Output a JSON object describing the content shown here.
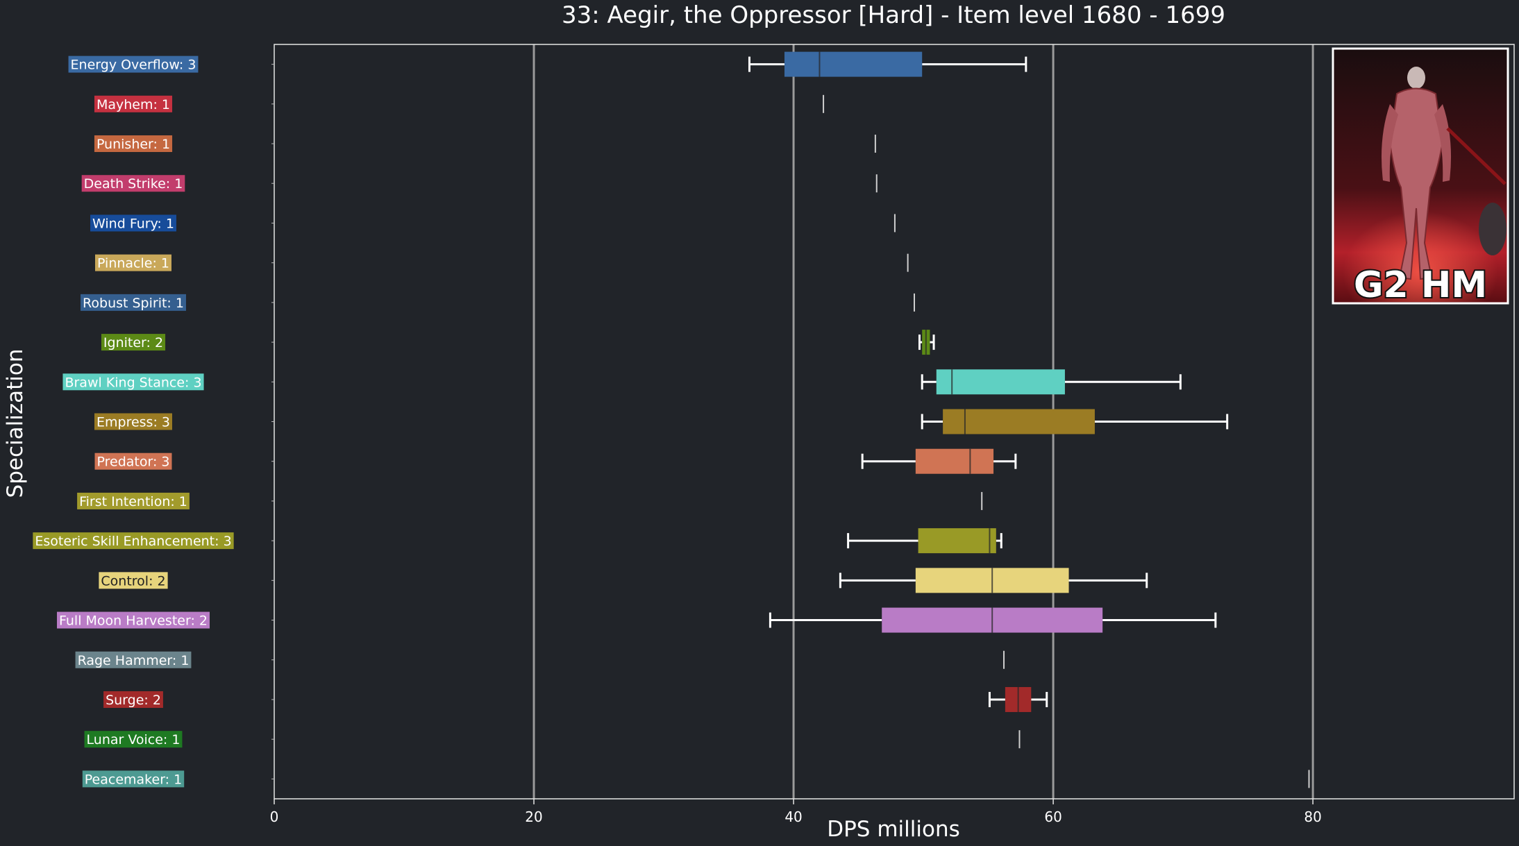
{
  "chart_data": {
    "type": "boxplot",
    "title": "33: Aegir, the Oppressor [Hard] - Item level 1680 - 1699",
    "xlabel": "DPS millions",
    "ylabel": "Specialization",
    "xlim": [
      0,
      95.5
    ],
    "xticks": [
      0,
      20,
      40,
      60,
      80
    ],
    "grid": "vertical",
    "badge_text": "G2 HM",
    "series": [
      {
        "name": "Energy Overflow: 3",
        "color": "#3a6aa3",
        "min": 36.6,
        "q1": 39.3,
        "median": 42.0,
        "q3": 49.9,
        "max": 57.9
      },
      {
        "name": "Mayhem: 1",
        "color": "#c53140",
        "min": 42.3,
        "q1": 42.3,
        "median": 42.3,
        "q3": 42.3,
        "max": 42.3
      },
      {
        "name": "Punisher: 1",
        "color": "#c56840",
        "min": 46.3,
        "q1": 46.3,
        "median": 46.3,
        "q3": 46.3,
        "max": 46.3
      },
      {
        "name": "Death Strike: 1",
        "color": "#c23d6c",
        "min": 46.4,
        "q1": 46.4,
        "median": 46.4,
        "q3": 46.4,
        "max": 46.4
      },
      {
        "name": "Wind Fury: 1",
        "color": "#174c9a",
        "min": 47.8,
        "q1": 47.8,
        "median": 47.8,
        "q3": 47.8,
        "max": 47.8
      },
      {
        "name": "Pinnacle: 1",
        "color": "#c9a85a",
        "min": 48.8,
        "q1": 48.8,
        "median": 48.8,
        "q3": 48.8,
        "max": 48.8
      },
      {
        "name": "Robust Spirit: 1",
        "color": "#355f8f",
        "min": 49.3,
        "q1": 49.3,
        "median": 49.3,
        "q3": 49.3,
        "max": 49.3
      },
      {
        "name": "Igniter: 2",
        "color": "#5c8a16",
        "min": 49.7,
        "q1": 49.9,
        "median": 50.2,
        "q3": 50.5,
        "max": 50.8
      },
      {
        "name": "Brawl King Stance: 3",
        "color": "#5fd0c2",
        "min": 49.9,
        "q1": 51.0,
        "median": 52.2,
        "q3": 60.9,
        "max": 69.8
      },
      {
        "name": "Empress: 3",
        "color": "#9b7c24",
        "min": 49.9,
        "q1": 51.5,
        "median": 53.2,
        "q3": 63.2,
        "max": 73.4
      },
      {
        "name": "Predator: 3",
        "color": "#d07454",
        "min": 45.3,
        "q1": 49.4,
        "median": 53.6,
        "q3": 55.4,
        "max": 57.1
      },
      {
        "name": "First Intention: 1",
        "color": "#a29b2c",
        "min": 54.5,
        "q1": 54.5,
        "median": 54.5,
        "q3": 54.5,
        "max": 54.5
      },
      {
        "name": "Esoteric Skill Enhancement: 3",
        "color": "#999a26",
        "min": 44.2,
        "q1": 49.6,
        "median": 55.1,
        "q3": 55.6,
        "max": 56.0
      },
      {
        "name": "Control: 2",
        "color": "#e7d47c",
        "min": 43.6,
        "q1": 49.4,
        "median": 55.3,
        "q3": 61.2,
        "max": 67.2
      },
      {
        "name": "Full Moon Harvester: 2",
        "color": "#b97cc6",
        "min": 38.2,
        "q1": 46.8,
        "median": 55.3,
        "q3": 63.8,
        "max": 72.5
      },
      {
        "name": "Rage Hammer: 1",
        "color": "#6b848c",
        "min": 56.2,
        "q1": 56.2,
        "median": 56.2,
        "q3": 56.2,
        "max": 56.2
      },
      {
        "name": "Surge: 2",
        "color": "#a22a2a",
        "min": 55.1,
        "q1": 56.3,
        "median": 57.3,
        "q3": 58.3,
        "max": 59.5
      },
      {
        "name": "Lunar Voice: 1",
        "color": "#1e7a22",
        "min": 57.4,
        "q1": 57.4,
        "median": 57.4,
        "q3": 57.4,
        "max": 57.4
      },
      {
        "name": "Peacemaker: 1",
        "color": "#4d9a92",
        "min": 79.7,
        "q1": 79.7,
        "median": 79.7,
        "q3": 79.7,
        "max": 79.7
      }
    ]
  }
}
